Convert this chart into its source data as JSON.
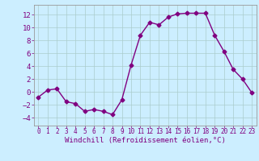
{
  "x": [
    0,
    1,
    2,
    3,
    4,
    5,
    6,
    7,
    8,
    9,
    10,
    11,
    12,
    13,
    14,
    15,
    16,
    17,
    18,
    19,
    20,
    21,
    22,
    23
  ],
  "y": [
    -0.8,
    0.3,
    0.5,
    -1.5,
    -1.8,
    -3.0,
    -2.7,
    -3.0,
    -3.5,
    -1.2,
    4.2,
    8.8,
    10.8,
    10.4,
    11.6,
    12.1,
    12.2,
    12.2,
    12.2,
    8.8,
    6.3,
    3.5,
    2.0,
    -0.1
  ],
  "line_color": "#800080",
  "marker": "D",
  "markersize": 2.5,
  "linewidth": 1.0,
  "xlabel": "Windchill (Refroidissement éolien,°C)",
  "xlabel_fontsize": 6.5,
  "background_color": "#cceeff",
  "grid_color": "#aacccc",
  "yticks": [
    -4,
    -2,
    0,
    2,
    4,
    6,
    8,
    10,
    12
  ],
  "ylim": [
    -5.2,
    13.5
  ],
  "xlim": [
    -0.5,
    23.5
  ],
  "xticks": [
    0,
    1,
    2,
    3,
    4,
    5,
    6,
    7,
    8,
    9,
    10,
    11,
    12,
    13,
    14,
    15,
    16,
    17,
    18,
    19,
    20,
    21,
    22,
    23
  ],
  "tick_fontsize": 5.5,
  "ytick_fontsize": 6.5
}
